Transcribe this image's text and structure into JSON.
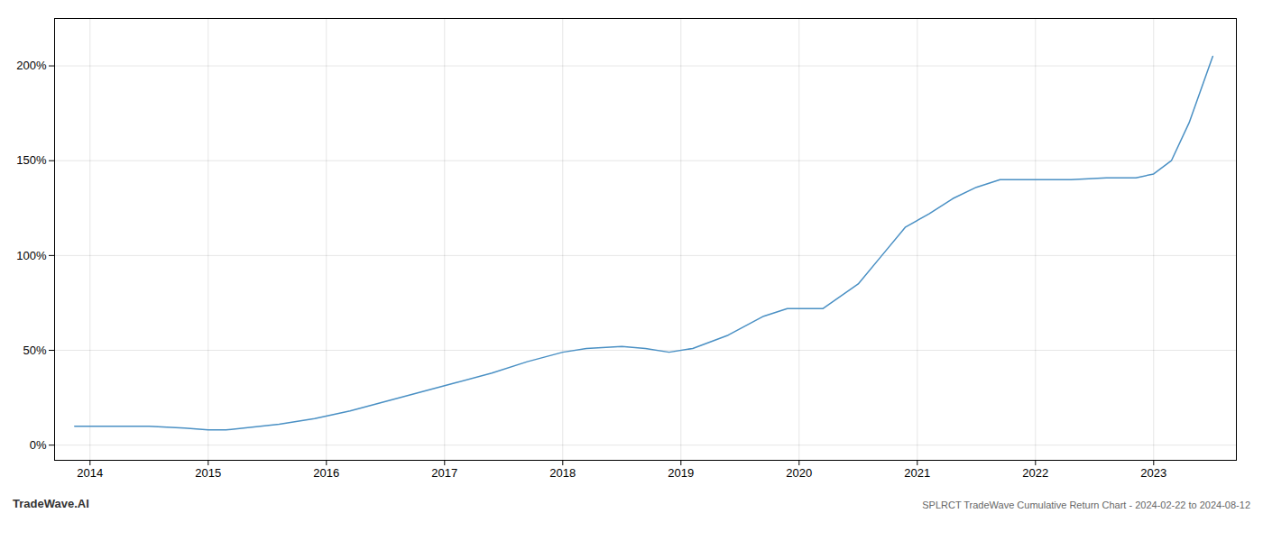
{
  "chart_data": {
    "type": "line",
    "title": "SPLRCT TradeWave Cumulative Return Chart - 2024-02-22 to 2024-08-12",
    "annotations": [
      "TradeWave.AI"
    ],
    "x": [
      2013.87,
      2014.0,
      2014.2,
      2014.5,
      2014.8,
      2015.0,
      2015.15,
      2015.3,
      2015.6,
      2015.9,
      2016.2,
      2016.5,
      2016.8,
      2017.1,
      2017.4,
      2017.7,
      2018.0,
      2018.2,
      2018.5,
      2018.7,
      2018.9,
      2019.1,
      2019.4,
      2019.7,
      2019.9,
      2020.2,
      2020.5,
      2020.7,
      2020.9,
      2021.1,
      2021.3,
      2021.5,
      2021.7,
      2021.85,
      2022.0,
      2022.3,
      2022.6,
      2022.85,
      2023.0,
      2023.15,
      2023.3,
      2023.5
    ],
    "values": [
      10,
      10,
      10,
      10,
      9,
      8,
      8,
      9,
      11,
      14,
      18,
      23,
      28,
      33,
      38,
      44,
      49,
      51,
      52,
      51,
      49,
      51,
      58,
      68,
      72,
      72,
      85,
      100,
      115,
      122,
      130,
      136,
      140,
      140,
      140,
      140,
      141,
      141,
      143,
      150,
      170,
      205
    ],
    "color": "#4a90c4",
    "xlim": [
      2013.7,
      2023.7
    ],
    "xticks": [
      2014,
      2015,
      2016,
      2017,
      2018,
      2019,
      2020,
      2021,
      2022,
      2023
    ],
    "ylim": [
      -8,
      225
    ],
    "yticks": [
      {
        "value": 0,
        "label": "0%"
      },
      {
        "value": 50,
        "label": "50%"
      },
      {
        "value": 100,
        "label": "100%"
      },
      {
        "value": 150,
        "label": "150%"
      },
      {
        "value": 200,
        "label": "200%"
      }
    ],
    "grid": true
  }
}
